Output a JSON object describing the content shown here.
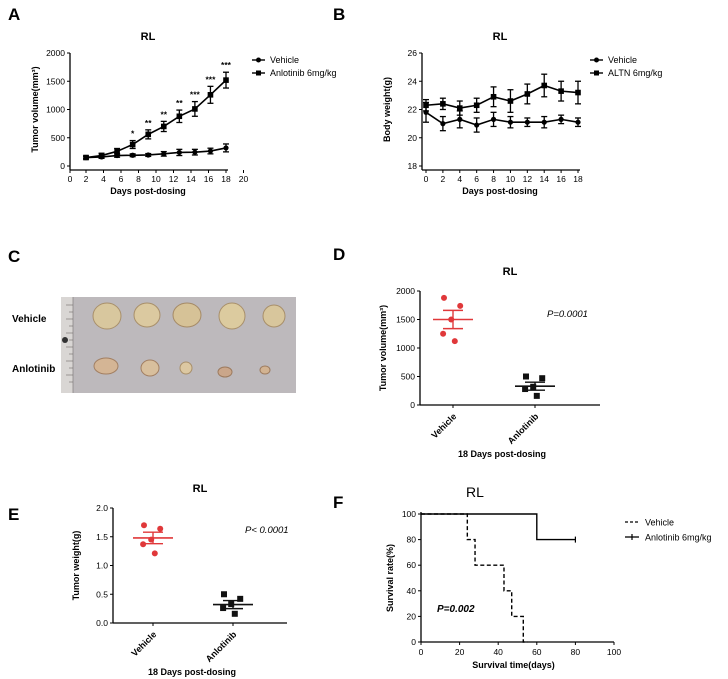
{
  "figure": {
    "panel_labels": {
      "a": "A",
      "b": "B",
      "c": "C",
      "d": "D",
      "e": "E",
      "f": "F"
    },
    "photo": {
      "row1": "Vehicle",
      "row2": "Anlotinib"
    }
  },
  "chart_data": [
    {
      "id": "A",
      "type": "line",
      "title": "RL",
      "xlabel": "Days post-dosing",
      "ylabel": "Tumor volume(mm³)",
      "xlim": [
        0,
        20
      ],
      "ylim": [
        0,
        2000
      ],
      "xticks": [
        0,
        2,
        4,
        6,
        8,
        10,
        12,
        14,
        16,
        18,
        20
      ],
      "yticks": [
        0,
        500,
        1000,
        1500,
        2000
      ],
      "x": [
        0,
        2,
        4,
        6,
        8,
        10,
        12,
        14,
        16,
        18
      ],
      "series": [
        {
          "name": "Vehicle",
          "marker": "circle",
          "values": [
            150,
            160,
            185,
            190,
            195,
            215,
            240,
            245,
            265,
            320
          ],
          "errors": [
            25,
            25,
            30,
            25,
            25,
            40,
            55,
            50,
            50,
            70
          ]
        },
        {
          "name": "Anlotinib 6mg/kg",
          "marker": "square",
          "values": [
            150,
            185,
            260,
            380,
            560,
            700,
            880,
            1010,
            1260,
            1520
          ],
          "errors": [
            25,
            40,
            50,
            70,
            80,
            90,
            110,
            130,
            150,
            140
          ]
        }
      ],
      "annotations": [
        {
          "x": 6,
          "text": "*"
        },
        {
          "x": 8,
          "text": "**"
        },
        {
          "x": 10,
          "text": "**"
        },
        {
          "x": 12,
          "text": "**"
        },
        {
          "x": 14,
          "text": "***"
        },
        {
          "x": 16,
          "text": "***"
        },
        {
          "x": 18,
          "text": "***"
        }
      ]
    },
    {
      "id": "B",
      "type": "line",
      "title": "RL",
      "xlabel": "Days post-dosing",
      "ylabel": "Body weight(g)",
      "xlim": [
        0,
        18
      ],
      "ylim": [
        18,
        26
      ],
      "xticks": [
        0,
        2,
        4,
        6,
        8,
        10,
        12,
        14,
        16,
        18
      ],
      "yticks": [
        18,
        20,
        22,
        24,
        26
      ],
      "x": [
        0,
        2,
        4,
        6,
        8,
        10,
        12,
        14,
        16,
        18
      ],
      "series": [
        {
          "name": "Vehicle",
          "marker": "circle",
          "values": [
            21.8,
            21.0,
            21.3,
            20.9,
            21.3,
            21.1,
            21.1,
            21.1,
            21.3,
            21.1
          ],
          "errors": [
            0.7,
            0.5,
            0.6,
            0.5,
            0.5,
            0.4,
            0.3,
            0.4,
            0.3,
            0.3
          ]
        },
        {
          "name": "ALTN 6mg/kg",
          "marker": "square",
          "values": [
            22.3,
            22.4,
            22.1,
            22.3,
            22.9,
            22.6,
            23.1,
            23.7,
            23.3,
            23.2
          ],
          "errors": [
            0.4,
            0.4,
            0.5,
            0.5,
            0.7,
            0.8,
            0.7,
            0.8,
            0.7,
            0.8
          ]
        }
      ]
    },
    {
      "id": "D",
      "type": "scatter",
      "title": "RL",
      "xlabel": "18 Days post-dosing",
      "ylabel": "Tumor volume(mm³)",
      "ylim": [
        0,
        2000
      ],
      "yticks": [
        0,
        500,
        1000,
        1500,
        2000
      ],
      "categories": [
        "Vehicle",
        "Anlotinib"
      ],
      "groups": [
        {
          "name": "Vehicle",
          "color": "#e0383a",
          "marker": "circle",
          "points": [
            1880,
            1740,
            1500,
            1250,
            1120
          ],
          "mean": 1500,
          "sem": 160
        },
        {
          "name": "Anlotinib",
          "color": "#111111",
          "marker": "square",
          "points": [
            500,
            470,
            320,
            280,
            160
          ],
          "mean": 330,
          "sem": 70
        }
      ],
      "pvalue": "P=0.0001"
    },
    {
      "id": "E",
      "type": "scatter",
      "title": "RL",
      "xlabel": "18 Days post-dosing",
      "ylabel": "Tumor weight(g)",
      "ylim": [
        0,
        2.0
      ],
      "yticks": [
        "0.0",
        "0.5",
        "1.0",
        "1.5",
        "2.0"
      ],
      "categories": [
        "Vehicle",
        "Anlotinib"
      ],
      "groups": [
        {
          "name": "Vehicle",
          "color": "#e0383a",
          "marker": "circle",
          "points": [
            1.7,
            1.64,
            1.45,
            1.37,
            1.21
          ],
          "mean": 1.48,
          "sem": 0.1
        },
        {
          "name": "Anlotinib",
          "color": "#111111",
          "marker": "square",
          "points": [
            0.5,
            0.42,
            0.33,
            0.26,
            0.16
          ],
          "mean": 0.32,
          "sem": 0.07
        }
      ],
      "pvalue": "P< 0.0001"
    },
    {
      "id": "F",
      "type": "line",
      "title": "RL",
      "xlabel": "Survival time(days)",
      "ylabel": "Survival rate(%)",
      "xlim": [
        0,
        100
      ],
      "ylim": [
        0,
        100
      ],
      "xticks": [
        0,
        20,
        40,
        60,
        80,
        100
      ],
      "yticks": [
        0,
        20,
        40,
        60,
        80,
        100
      ],
      "series": [
        {
          "name": "Vehicle",
          "style": "dashed",
          "steps": [
            [
              0,
              100
            ],
            [
              24,
              100
            ],
            [
              24,
              80
            ],
            [
              28,
              80
            ],
            [
              28,
              60
            ],
            [
              43,
              60
            ],
            [
              43,
              40
            ],
            [
              47,
              40
            ],
            [
              47,
              20
            ],
            [
              53,
              20
            ],
            [
              53,
              0
            ],
            [
              55,
              0
            ]
          ]
        },
        {
          "name": "Anlotinib 6mg/kg",
          "style": "solid",
          "steps": [
            [
              0,
              100
            ],
            [
              60,
              100
            ],
            [
              60,
              80
            ],
            [
              80,
              80
            ]
          ]
        }
      ],
      "pvalue": "P=0.002"
    }
  ]
}
